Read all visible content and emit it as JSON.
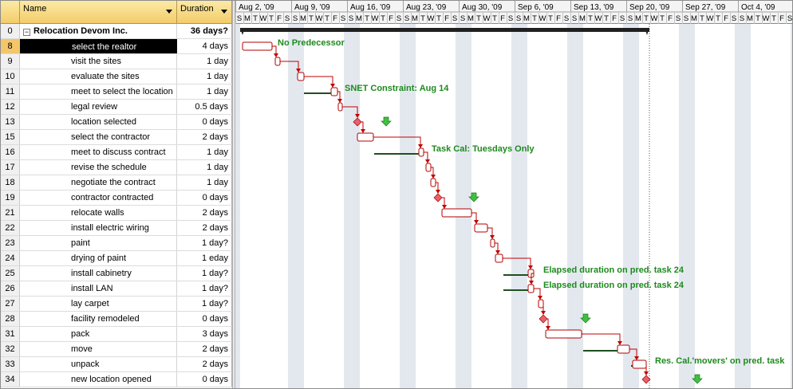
{
  "table": {
    "columns": {
      "name": "Name",
      "duration": "Duration"
    },
    "summary": {
      "id": "0",
      "name": "Relocation Devom Inc.",
      "duration": "36 days?",
      "collapse_glyph": "−"
    },
    "rows": [
      {
        "id": "8",
        "name": "select the realtor",
        "duration": "4 days",
        "selected": true
      },
      {
        "id": "9",
        "name": "visit the sites",
        "duration": "1 day"
      },
      {
        "id": "10",
        "name": "evaluate the sites",
        "duration": "1 day"
      },
      {
        "id": "11",
        "name": "meet to select the location",
        "duration": "1 day"
      },
      {
        "id": "12",
        "name": "legal review",
        "duration": "0.5 days"
      },
      {
        "id": "13",
        "name": "location selected",
        "duration": "0 days"
      },
      {
        "id": "15",
        "name": "select the contractor",
        "duration": "2 days"
      },
      {
        "id": "16",
        "name": "meet to discuss contract",
        "duration": "1 day"
      },
      {
        "id": "17",
        "name": "revise the schedule",
        "duration": "1 day"
      },
      {
        "id": "18",
        "name": "negotiate the contract",
        "duration": "1 day"
      },
      {
        "id": "19",
        "name": "contractor contracted",
        "duration": "0 days"
      },
      {
        "id": "21",
        "name": "relocate walls",
        "duration": "2 days"
      },
      {
        "id": "22",
        "name": "install electric wiring",
        "duration": "2 days"
      },
      {
        "id": "23",
        "name": "paint",
        "duration": "1 day?"
      },
      {
        "id": "24",
        "name": "drying of paint",
        "duration": "1 eday"
      },
      {
        "id": "25",
        "name": "install cabinetry",
        "duration": "1 day?"
      },
      {
        "id": "26",
        "name": "install LAN",
        "duration": "1 day?"
      },
      {
        "id": "27",
        "name": "lay carpet",
        "duration": "1 day?"
      },
      {
        "id": "28",
        "name": "facility remodeled",
        "duration": "0 days"
      },
      {
        "id": "31",
        "name": "pack",
        "duration": "3 days"
      },
      {
        "id": "32",
        "name": "move",
        "duration": "2 days"
      },
      {
        "id": "33",
        "name": "unpack",
        "duration": "2 days"
      },
      {
        "id": "34",
        "name": "new location opened",
        "duration": "0 days"
      }
    ]
  },
  "timeline": {
    "weeks": [
      "Aug 2, '09",
      "Aug 9, '09",
      "Aug 16, '09",
      "Aug 23, '09",
      "Aug 30, '09",
      "Sep 6, '09",
      "Sep 13, '09",
      "Sep 20, '09",
      "Sep 27, '09",
      "Oct 4, '09"
    ],
    "day_letters": [
      "S",
      "M",
      "T",
      "W",
      "T",
      "F",
      "S"
    ]
  },
  "annotations": {
    "no_predecessor": "No Predecessor",
    "snet": "SNET Constraint: Aug 14",
    "task_cal": "Task Cal: Tuesdays Only",
    "elapsed_1": "Elapsed duration on pred. task 24",
    "elapsed_2": "Elapsed duration on pred. task 24",
    "res_cal": "Res. Cal.'movers' on pred. task"
  },
  "colors": {
    "bar_border": "#b00000",
    "bar_fill": "#ffffff",
    "link": "#c00000",
    "milestone": "#e8606a",
    "deadline_arrow": "#40c040",
    "label_text": "#1e8a1e",
    "weekend_shade": "#e3e8ef",
    "summary_bar": "#202020",
    "header_gradient_top": "#fbeaa5",
    "header_gradient_bottom": "#f3cc6a"
  }
}
